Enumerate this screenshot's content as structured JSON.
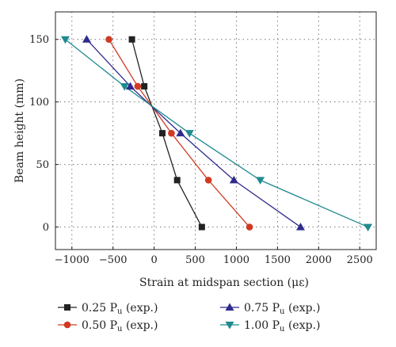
{
  "chart_data": {
    "type": "line",
    "xlabel": "Strain at midspan section (με)",
    "ylabel": "Beam height (mm)",
    "xlim": [
      -1200,
      2700
    ],
    "ylim": [
      -18,
      172
    ],
    "x_ticks": [
      -1000,
      -500,
      0,
      500,
      1000,
      1500,
      2000,
      2500
    ],
    "x_tick_labels": [
      "−1000",
      "−500",
      "0",
      "500",
      "1000",
      "1500",
      "2000",
      "2500"
    ],
    "y_ticks": [
      0,
      50,
      100,
      150
    ],
    "y_tick_labels": [
      "0",
      "50",
      "100",
      "150"
    ],
    "grid": true,
    "legend_position": "bottom",
    "series": [
      {
        "name": "0.25 Pu (exp.)",
        "legend_main": "0.25 P",
        "legend_sub": "u",
        "legend_rest": " (exp.)",
        "color": "#222222",
        "marker": "square",
        "points": [
          [
            -270,
            150
          ],
          [
            -120,
            112.5
          ],
          [
            100,
            75
          ],
          [
            280,
            37.5
          ],
          [
            580,
            0
          ]
        ]
      },
      {
        "name": "0.50 Pu (exp.)",
        "legend_main": "0.50 P",
        "legend_sub": "u",
        "legend_rest": " (exp.)",
        "color": "#d03a22",
        "marker": "circle",
        "points": [
          [
            -550,
            150
          ],
          [
            -200,
            112.5
          ],
          [
            210,
            75
          ],
          [
            660,
            37.5
          ],
          [
            1160,
            0
          ]
        ]
      },
      {
        "name": "0.75 Pu (exp.)",
        "legend_main": "0.75 P",
        "legend_sub": "u",
        "legend_rest": " (exp.)",
        "color": "#2f2a8c",
        "marker": "triangle-up",
        "points": [
          [
            -820,
            150
          ],
          [
            -290,
            112.5
          ],
          [
            320,
            75
          ],
          [
            970,
            37.5
          ],
          [
            1780,
            0
          ]
        ]
      },
      {
        "name": "1.00 Pu (exp.)",
        "legend_main": "1.00 P",
        "legend_sub": "u",
        "legend_rest": " (exp.)",
        "color": "#1f8a8f",
        "marker": "triangle-down",
        "points": [
          [
            -1080,
            150
          ],
          [
            -360,
            112.5
          ],
          [
            430,
            75
          ],
          [
            1290,
            37.5
          ],
          [
            2600,
            0
          ]
        ]
      }
    ]
  }
}
